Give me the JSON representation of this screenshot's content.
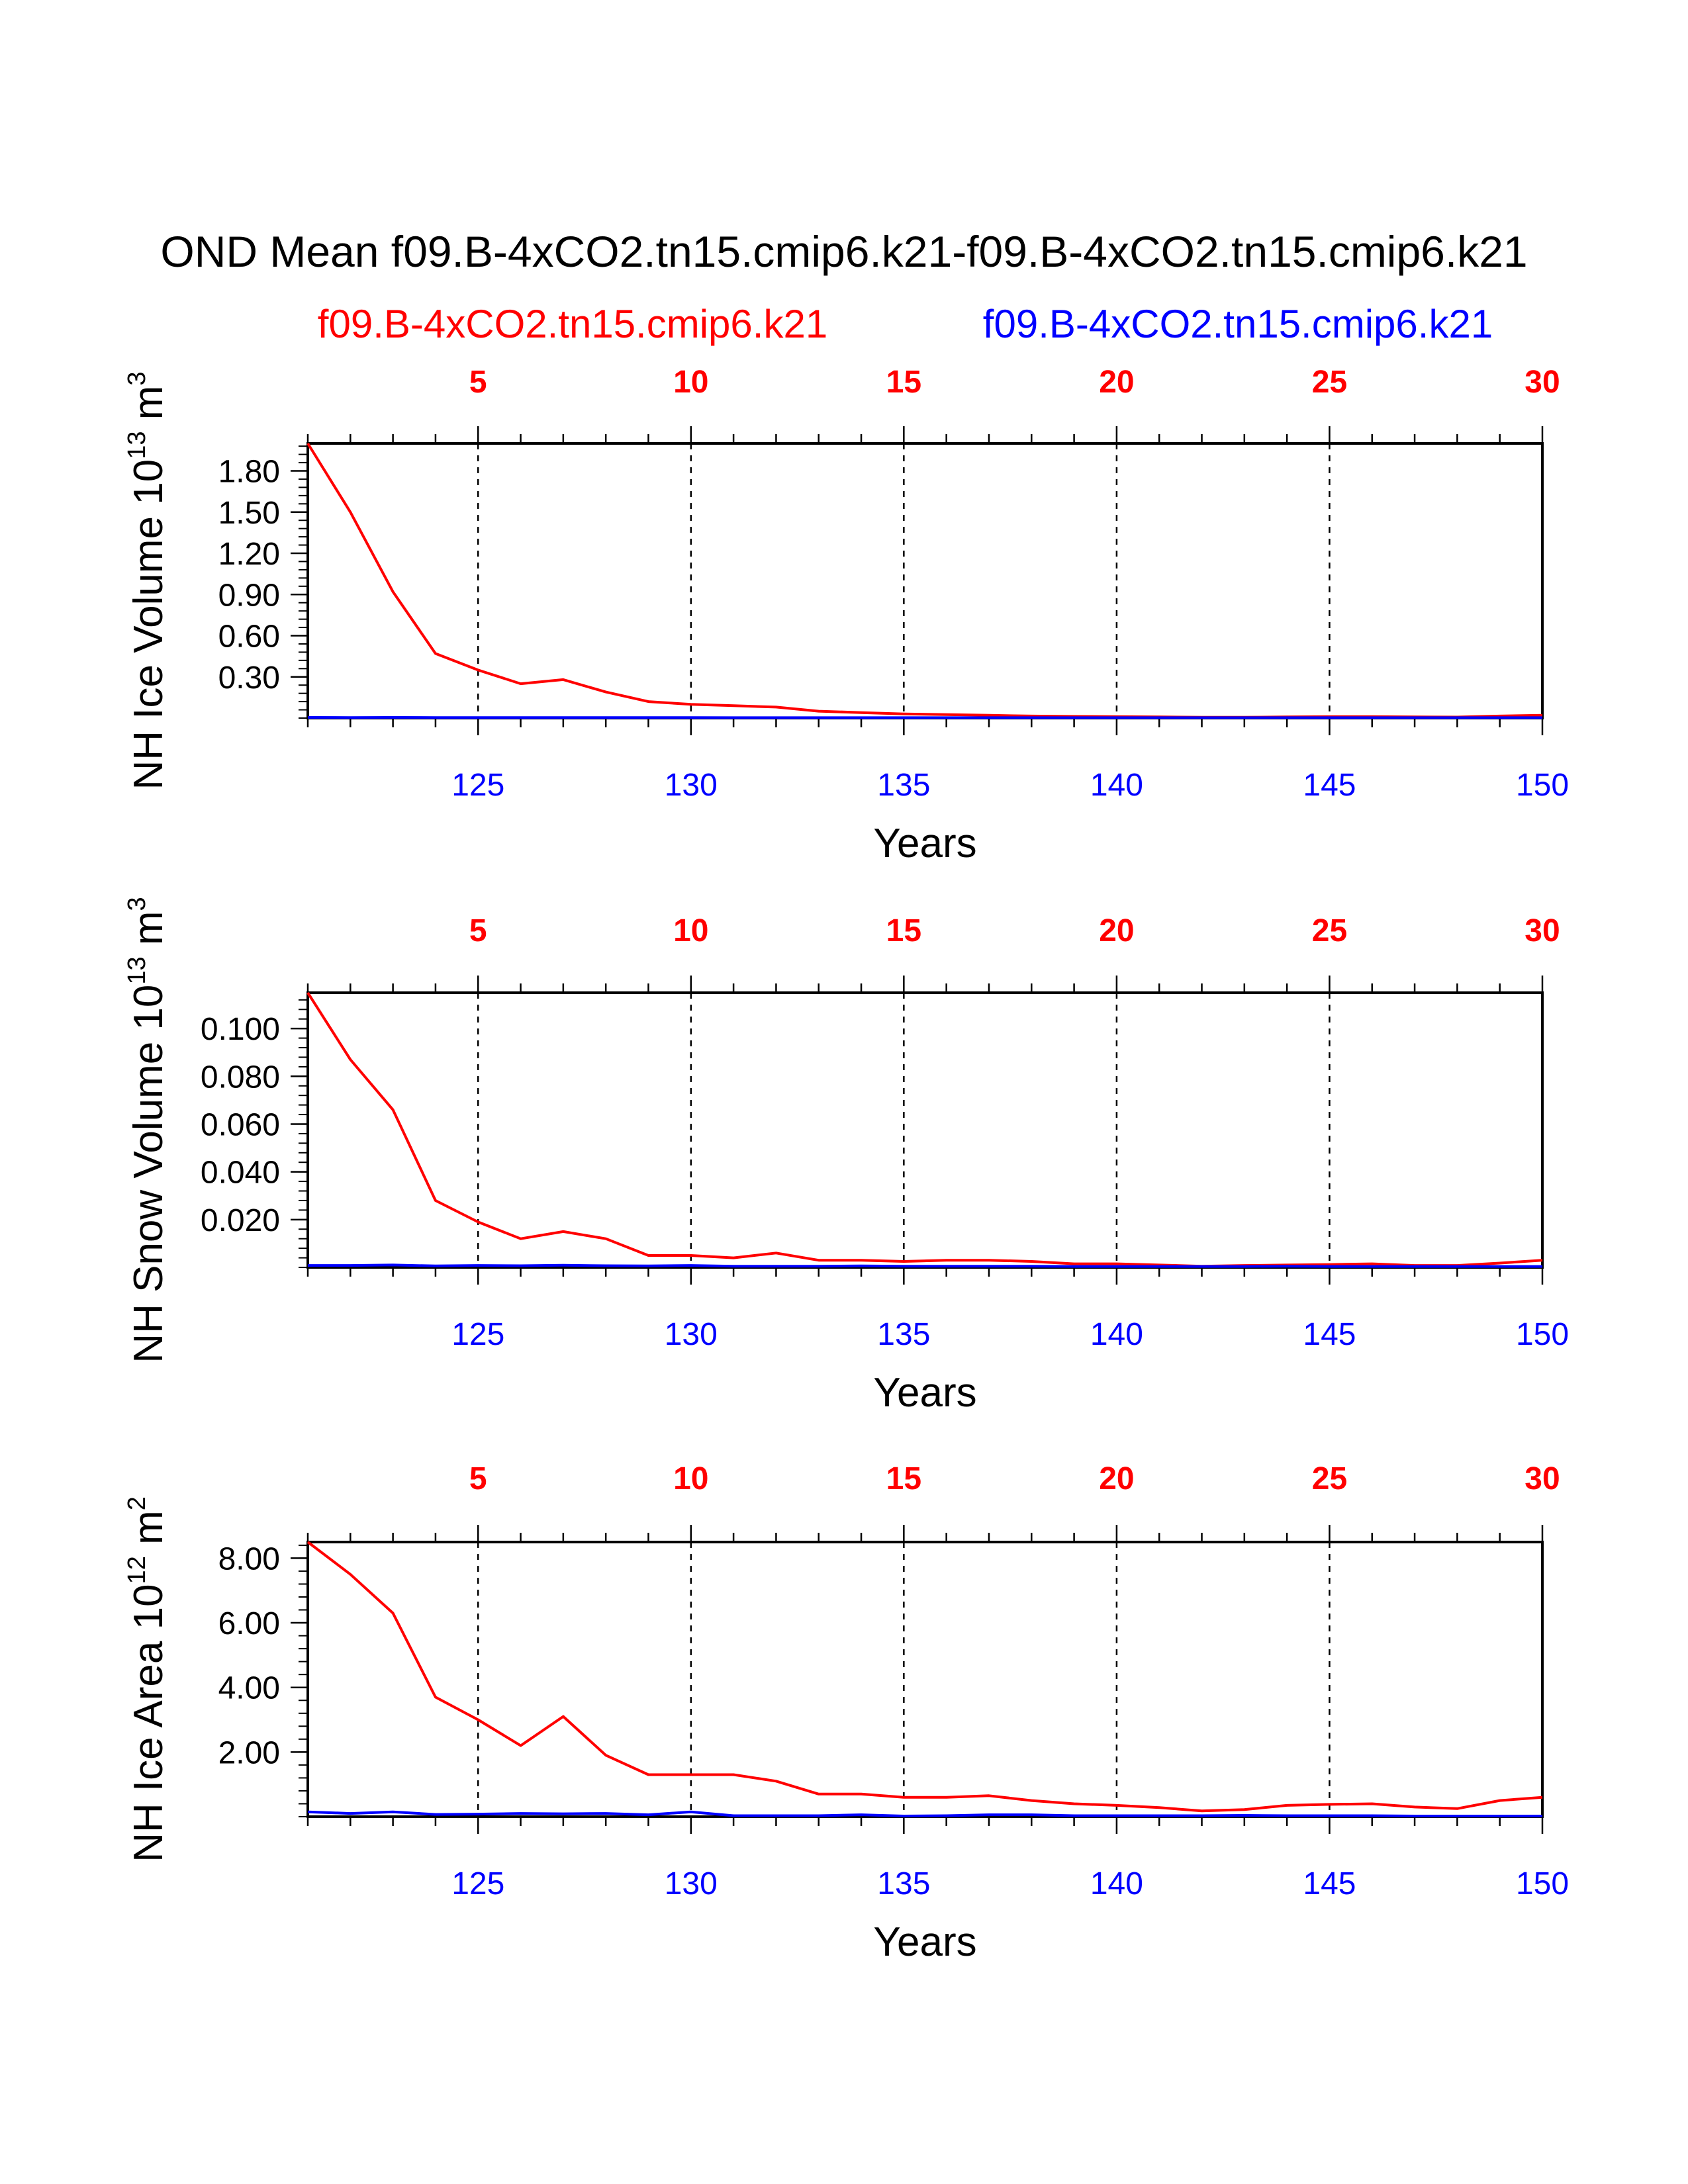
{
  "title": "OND Mean f09.B-4xCO2.tn15.cmip6.k21-f09.B-4xCO2.tn15.cmip6.k21",
  "legend": [
    {
      "label": "f09.B-4xCO2.tn15.cmip6.k21",
      "color": "#ff0000"
    },
    {
      "label": "f09.B-4xCO2.tn15.cmip6.k21",
      "color": "#0000ff"
    }
  ],
  "colors": {
    "series_a": "#ff0000",
    "series_b": "#0000ff",
    "frame": "#000000"
  },
  "chart_data": [
    {
      "type": "line",
      "ylabel": {
        "text": "NH Ice Volume 10",
        "exp": "13",
        "unit": " m",
        "unit_exp": "3"
      },
      "xlabel": "Years",
      "ylim": [
        0.0,
        2.0
      ],
      "xlim": [
        121,
        150
      ],
      "bottom_ticks": [
        "125",
        "130",
        "135",
        "140",
        "145",
        "150"
      ],
      "top_ticks": [
        "5",
        "10",
        "15",
        "20",
        "25",
        "30"
      ],
      "y_ticks": [
        "1.80",
        "1.50",
        "1.20",
        "0.90",
        "0.60",
        "0.30"
      ],
      "x": [
        121,
        122,
        123,
        124,
        125,
        126,
        127,
        128,
        129,
        130,
        131,
        132,
        133,
        134,
        135,
        136,
        137,
        138,
        139,
        140,
        141,
        142,
        143,
        144,
        145,
        146,
        147,
        148,
        149,
        150
      ],
      "series": [
        {
          "name": "f09.B-4xCO2.tn15.cmip6.k21",
          "color": "#ff0000",
          "values": [
            2.0,
            1.5,
            0.92,
            0.47,
            0.35,
            0.25,
            0.28,
            0.19,
            0.12,
            0.1,
            0.09,
            0.08,
            0.05,
            0.04,
            0.03,
            0.025,
            0.02,
            0.015,
            0.012,
            0.01,
            0.008,
            0.006,
            0.006,
            0.008,
            0.01,
            0.01,
            0.008,
            0.007,
            0.015,
            0.02
          ]
        },
        {
          "name": "f09.B-4xCO2.tn15.cmip6.k21",
          "color": "#0000ff",
          "values": [
            0.005,
            0.004,
            0.005,
            0.004,
            0.004,
            0.004,
            0.004,
            0.004,
            0.004,
            0.004,
            0.003,
            0.003,
            0.003,
            0.003,
            0.003,
            0.003,
            0.003,
            0.003,
            0.003,
            0.003,
            0.003,
            0.003,
            0.003,
            0.003,
            0.003,
            0.003,
            0.003,
            0.003,
            0.003,
            0.003
          ]
        }
      ]
    },
    {
      "type": "line",
      "ylabel": {
        "text": "NH Snow Volume 10",
        "exp": "13",
        "unit": " m",
        "unit_exp": "3"
      },
      "xlabel": "Years",
      "ylim": [
        0.0,
        0.115
      ],
      "xlim": [
        121,
        150
      ],
      "bottom_ticks": [
        "125",
        "130",
        "135",
        "140",
        "145",
        "150"
      ],
      "top_ticks": [
        "5",
        "10",
        "15",
        "20",
        "25",
        "30"
      ],
      "y_ticks": [
        "0.100",
        "0.080",
        "0.060",
        "0.040",
        "0.020"
      ],
      "x": [
        121,
        122,
        123,
        124,
        125,
        126,
        127,
        128,
        129,
        130,
        131,
        132,
        133,
        134,
        135,
        136,
        137,
        138,
        139,
        140,
        141,
        142,
        143,
        144,
        145,
        146,
        147,
        148,
        149,
        150
      ],
      "series": [
        {
          "name": "f09.B-4xCO2.tn15.cmip6.k21",
          "color": "#ff0000",
          "values": [
            0.115,
            0.087,
            0.066,
            0.028,
            0.019,
            0.012,
            0.015,
            0.012,
            0.005,
            0.005,
            0.004,
            0.006,
            0.003,
            0.003,
            0.0025,
            0.003,
            0.003,
            0.0025,
            0.0015,
            0.0015,
            0.001,
            0.0005,
            0.0008,
            0.001,
            0.0012,
            0.0015,
            0.0008,
            0.0008,
            0.0018,
            0.003
          ]
        },
        {
          "name": "f09.B-4xCO2.tn15.cmip6.k21",
          "color": "#0000ff",
          "values": [
            0.0008,
            0.0008,
            0.001,
            0.0006,
            0.0008,
            0.0007,
            0.0009,
            0.0007,
            0.0006,
            0.0008,
            0.0005,
            0.0005,
            0.0005,
            0.0006,
            0.0005,
            0.0005,
            0.0005,
            0.0005,
            0.0004,
            0.0004,
            0.0004,
            0.0004,
            0.0004,
            0.0005,
            0.0004,
            0.0004,
            0.0004,
            0.0004,
            0.0004,
            0.0004
          ]
        }
      ]
    },
    {
      "type": "line",
      "ylabel": {
        "text": "NH Ice Area 10",
        "exp": "12",
        "unit": " m",
        "unit_exp": "2"
      },
      "xlabel": "Years",
      "ylim": [
        0.0,
        8.5
      ],
      "xlim": [
        121,
        150
      ],
      "bottom_ticks": [
        "125",
        "130",
        "135",
        "140",
        "145",
        "150"
      ],
      "top_ticks": [
        "5",
        "10",
        "15",
        "20",
        "25",
        "30"
      ],
      "y_ticks": [
        "8.00",
        "6.00",
        "4.00",
        "2.00"
      ],
      "x": [
        121,
        122,
        123,
        124,
        125,
        126,
        127,
        128,
        129,
        130,
        131,
        132,
        133,
        134,
        135,
        136,
        137,
        138,
        139,
        140,
        141,
        142,
        143,
        144,
        145,
        146,
        147,
        148,
        149,
        150
      ],
      "series": [
        {
          "name": "f09.B-4xCO2.tn15.cmip6.k21",
          "color": "#ff0000",
          "values": [
            8.5,
            7.5,
            6.3,
            3.7,
            3.0,
            2.2,
            3.1,
            1.9,
            1.3,
            1.3,
            1.3,
            1.1,
            0.7,
            0.7,
            0.6,
            0.6,
            0.65,
            0.5,
            0.4,
            0.35,
            0.28,
            0.18,
            0.22,
            0.35,
            0.38,
            0.4,
            0.3,
            0.25,
            0.5,
            0.6
          ]
        },
        {
          "name": "f09.B-4xCO2.tn15.cmip6.k21",
          "color": "#0000ff",
          "values": [
            0.15,
            0.1,
            0.15,
            0.07,
            0.08,
            0.1,
            0.09,
            0.1,
            0.06,
            0.15,
            0.03,
            0.03,
            0.03,
            0.06,
            0.02,
            0.03,
            0.06,
            0.06,
            0.03,
            0.03,
            0.03,
            0.03,
            0.04,
            0.03,
            0.03,
            0.03,
            0.02,
            0.02,
            0.02,
            0.02
          ]
        }
      ]
    }
  ]
}
